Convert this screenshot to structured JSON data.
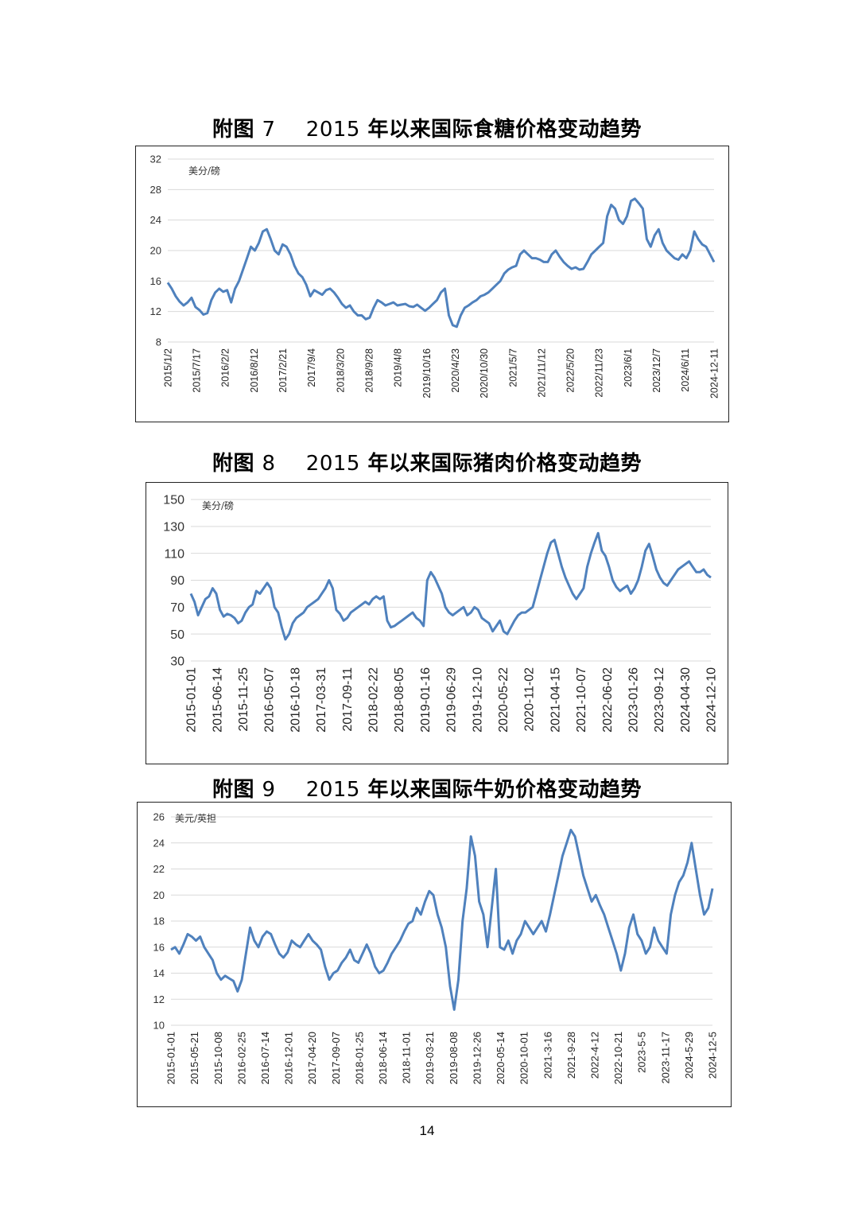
{
  "figures": [
    {
      "title_prefix": "附图 ",
      "title_num": "7",
      "title_sep": "    ",
      "title_year": "2015",
      "title_text": " 年以来国际食糖价格变动趋势"
    },
    {
      "title_prefix": "附图 ",
      "title_num": "8",
      "title_sep": "    ",
      "title_year": "2015",
      "title_text": " 年以来国际猪肉价格变动趋势"
    },
    {
      "title_prefix": "附图 ",
      "title_num": "9",
      "title_sep": "    ",
      "title_year": "2015",
      "title_text": " 年以来国际牛奶价格变动趋势"
    }
  ],
  "page_number": "14",
  "colors": {
    "line": "#4f81bd",
    "grid": "#d9d9d9"
  },
  "chart_data": [
    {
      "type": "line",
      "unit_label": "美分/磅",
      "ylim": [
        8,
        32
      ],
      "yticks": [
        8,
        12,
        16,
        20,
        24,
        28,
        32
      ],
      "grid": true,
      "xticks": [
        "2015/1/2",
        "2015/7/17",
        "2016/2/2",
        "2016/8/12",
        "2017/2/21",
        "2017/9/4",
        "2018/3/20",
        "2018/9/28",
        "2019/4/8",
        "2019/10/16",
        "2020/4/23",
        "2020/10/30",
        "2021/5/7",
        "2021/11/12",
        "2022/5/20",
        "2022/11/23",
        "2023/6/1",
        "2023/12/7",
        "2024/6/11",
        "2024-12-11"
      ],
      "series": [
        {
          "color": "#4f81bd",
          "values": [
            15.8,
            15.0,
            14.0,
            13.3,
            12.8,
            13.2,
            13.8,
            12.6,
            12.2,
            11.6,
            11.8,
            13.5,
            14.5,
            15.0,
            14.6,
            14.8,
            13.2,
            15.0,
            16.0,
            17.5,
            19.0,
            20.5,
            20.0,
            21.0,
            22.5,
            22.8,
            21.5,
            20.0,
            19.5,
            20.8,
            20.5,
            19.5,
            18.0,
            17.0,
            16.5,
            15.5,
            14.0,
            14.8,
            14.5,
            14.2,
            14.8,
            15.0,
            14.5,
            13.8,
            13.0,
            12.5,
            12.8,
            12.0,
            11.5,
            11.5,
            11.0,
            11.2,
            12.5,
            13.5,
            13.2,
            12.8,
            13.0,
            13.2,
            12.8,
            12.9,
            13.0,
            12.7,
            12.6,
            12.9,
            12.5,
            12.1,
            12.5,
            13.0,
            13.5,
            14.5,
            15.0,
            11.5,
            10.2,
            10.0,
            11.5,
            12.5,
            12.8,
            13.2,
            13.5,
            14.0,
            14.2,
            14.5,
            15.0,
            15.5,
            16.0,
            17.0,
            17.5,
            17.8,
            18.0,
            19.5,
            20.0,
            19.5,
            19.0,
            19.0,
            18.8,
            18.5,
            18.5,
            19.5,
            20.0,
            19.2,
            18.5,
            18.0,
            17.6,
            17.8,
            17.5,
            17.6,
            18.5,
            19.5,
            20.0,
            20.5,
            21.0,
            24.5,
            26.0,
            25.5,
            24.0,
            23.5,
            24.5,
            26.5,
            26.8,
            26.2,
            25.5,
            21.5,
            20.5,
            22.0,
            22.8,
            21.0,
            20.0,
            19.5,
            19.0,
            18.8,
            19.5,
            19.0,
            20.0,
            22.5,
            21.5,
            20.8,
            20.5,
            19.5,
            18.5
          ]
        }
      ]
    },
    {
      "type": "line",
      "unit_label": "美分/磅",
      "ylim": [
        30,
        150
      ],
      "yticks": [
        30,
        50,
        70,
        90,
        110,
        130,
        150
      ],
      "grid": true,
      "xticks": [
        "2015-01-01",
        "2015-06-14",
        "2015-11-25",
        "2016-05-07",
        "2016-10-18",
        "2017-03-31",
        "2017-09-11",
        "2018-02-22",
        "2018-08-05",
        "2019-01-16",
        "2019-06-29",
        "2019-12-10",
        "2020-05-22",
        "2020-11-02",
        "2021-04-15",
        "2021-10-07",
        "2022-06-02",
        "2023-01-26",
        "2023-09-12",
        "2024-04-30",
        "2024-12-10"
      ],
      "series": [
        {
          "color": "#4f81bd",
          "values": [
            80,
            74,
            64,
            70,
            76,
            78,
            84,
            80,
            68,
            63,
            65,
            64,
            62,
            58,
            60,
            66,
            70,
            72,
            82,
            80,
            84,
            88,
            84,
            70,
            66,
            55,
            46,
            50,
            58,
            62,
            64,
            66,
            70,
            72,
            74,
            76,
            80,
            84,
            90,
            84,
            68,
            65,
            60,
            62,
            66,
            68,
            70,
            72,
            74,
            72,
            76,
            78,
            76,
            78,
            60,
            55,
            56,
            58,
            60,
            62,
            64,
            66,
            62,
            60,
            56,
            90,
            96,
            92,
            86,
            80,
            70,
            66,
            64,
            66,
            68,
            70,
            64,
            66,
            70,
            68,
            62,
            60,
            58,
            52,
            56,
            60,
            52,
            50,
            55,
            60,
            64,
            66,
            66,
            68,
            70,
            80,
            90,
            100,
            110,
            118,
            120,
            110,
            100,
            92,
            86,
            80,
            76,
            80,
            84,
            100,
            110,
            118,
            125,
            112,
            108,
            100,
            90,
            85,
            82,
            84,
            86,
            80,
            84,
            90,
            100,
            112,
            117,
            108,
            98,
            92,
            88,
            86,
            90,
            94,
            98,
            100,
            102,
            104,
            100,
            96,
            96,
            98,
            94,
            92
          ]
        }
      ]
    },
    {
      "type": "line",
      "unit_label": "美元/英担",
      "ylim": [
        10,
        26
      ],
      "yticks": [
        10,
        12,
        14,
        16,
        18,
        20,
        22,
        24,
        26
      ],
      "grid": true,
      "xticks": [
        "2015-01-01",
        "2015-05-21",
        "2015-10-08",
        "2016-02-25",
        "2016-07-14",
        "2016-12-01",
        "2017-04-20",
        "2017-09-07",
        "2018-01-25",
        "2018-06-14",
        "2018-11-01",
        "2019-03-21",
        "2019-08-08",
        "2019-12-26",
        "2020-05-14",
        "2020-10-01",
        "2021-3-16",
        "2021-9-28",
        "2022-4-12",
        "2022-10-21",
        "2023-5-5",
        "2023-11-17",
        "2024-5-29",
        "2024-12-5"
      ],
      "series": [
        {
          "color": "#4f81bd",
          "values": [
            15.8,
            16.0,
            15.5,
            16.2,
            17.0,
            16.8,
            16.5,
            16.8,
            16.0,
            15.5,
            15.0,
            14.0,
            13.5,
            13.8,
            13.6,
            13.4,
            12.6,
            13.5,
            15.5,
            17.5,
            16.5,
            16.0,
            16.8,
            17.2,
            17.0,
            16.2,
            15.5,
            15.2,
            15.6,
            16.5,
            16.2,
            16.0,
            16.5,
            17.0,
            16.5,
            16.2,
            15.8,
            14.5,
            13.5,
            14.0,
            14.2,
            14.8,
            15.2,
            15.8,
            15.0,
            14.8,
            15.5,
            16.2,
            15.5,
            14.5,
            14.0,
            14.2,
            14.8,
            15.5,
            16.0,
            16.5,
            17.2,
            17.8,
            18.0,
            19.0,
            18.5,
            19.5,
            20.3,
            20.0,
            18.5,
            17.5,
            16.0,
            13.0,
            11.2,
            13.5,
            18.0,
            20.5,
            24.5,
            23.0,
            19.5,
            18.5,
            16.0,
            19.0,
            22.0,
            16.0,
            15.8,
            16.5,
            15.5,
            16.5,
            17.0,
            18.0,
            17.5,
            17.0,
            17.5,
            18.0,
            17.2,
            18.5,
            20.0,
            21.5,
            23.0,
            24.0,
            25.0,
            24.5,
            23.0,
            21.5,
            20.5,
            19.5,
            20.0,
            19.2,
            18.5,
            17.5,
            16.5,
            15.5,
            14.2,
            15.5,
            17.5,
            18.5,
            17.0,
            16.5,
            15.5,
            16.0,
            17.5,
            16.5,
            16.0,
            15.5,
            18.5,
            20.0,
            21.0,
            21.5,
            22.5,
            24.0,
            22.0,
            20.0,
            18.5,
            19.0,
            20.5
          ]
        }
      ]
    }
  ]
}
